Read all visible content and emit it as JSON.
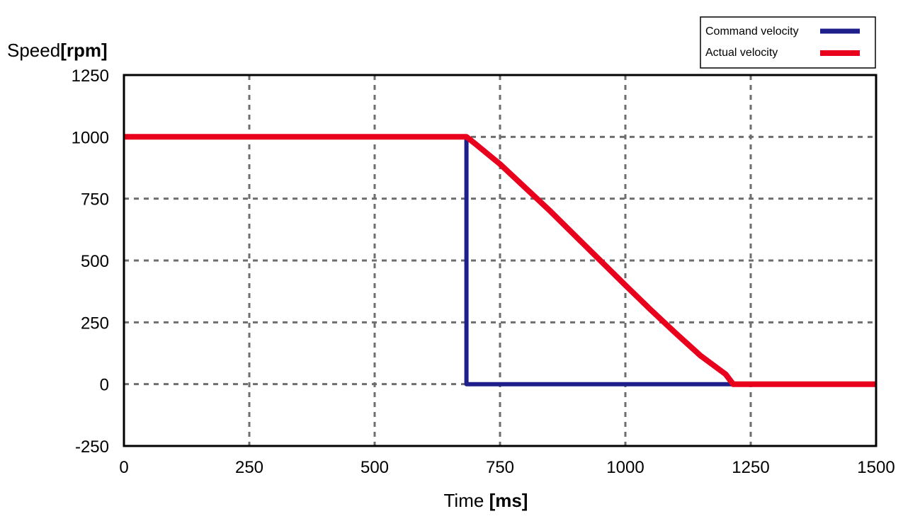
{
  "chart_data": {
    "type": "line",
    "title": "",
    "xlabel": {
      "text": "Time ",
      "unit": "[ms]"
    },
    "ylabel": {
      "text": "Speed",
      "unit": "[rpm]"
    },
    "xlim": [
      0,
      1500
    ],
    "ylim": [
      -250,
      1250
    ],
    "xticks": [
      0,
      250,
      500,
      750,
      1000,
      1250,
      1500
    ],
    "yticks": [
      -250,
      0,
      250,
      500,
      750,
      1000,
      1250
    ],
    "grid": true,
    "legend": "top-right",
    "series": [
      {
        "name": "Command velocity",
        "color": "#1f1f8c",
        "points": [
          [
            0,
            1000
          ],
          [
            683,
            1000
          ],
          [
            683,
            0
          ],
          [
            1500,
            0
          ]
        ]
      },
      {
        "name": "Actual velocity",
        "color": "#e8001c",
        "points": [
          [
            0,
            1000
          ],
          [
            683,
            1000
          ],
          [
            700,
            973
          ],
          [
            750,
            890
          ],
          [
            800,
            795
          ],
          [
            850,
            700
          ],
          [
            900,
            600
          ],
          [
            950,
            500
          ],
          [
            1000,
            400
          ],
          [
            1050,
            302
          ],
          [
            1100,
            207
          ],
          [
            1150,
            115
          ],
          [
            1200,
            40
          ],
          [
            1215,
            0
          ],
          [
            1500,
            0
          ]
        ]
      }
    ]
  }
}
